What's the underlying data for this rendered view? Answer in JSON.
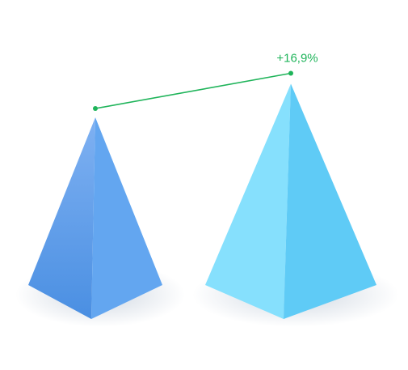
{
  "chart_data": {
    "type": "bar",
    "style": "3d-pyramid",
    "categories": [
      "",
      ""
    ],
    "series": [
      {
        "values": [
          100,
          116.9
        ]
      }
    ],
    "annotation": {
      "type": "change-connector",
      "from_index": 0,
      "to_index": 1,
      "label": "+16,9%"
    },
    "grid": false,
    "legend": "none",
    "ylim": [
      0,
      125
    ],
    "colors": {
      "pyramid_1_left": "#7FB1F2",
      "pyramid_1_left_dark": "#4A8FE2",
      "pyramid_1_right": "#63A6F0",
      "pyramid_2_left": "#86E0FD",
      "pyramid_2_right": "#5FCBF6",
      "connector": "#1FB45A"
    }
  }
}
